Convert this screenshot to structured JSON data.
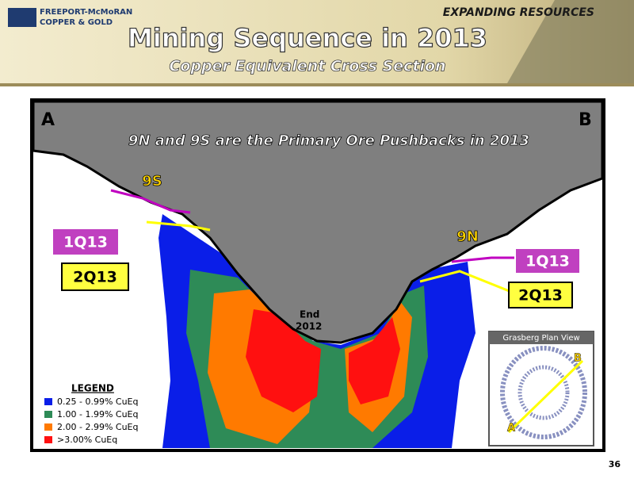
{
  "header": {
    "company": [
      "FREEPORT-McMoRAN",
      "COPPER & GOLD"
    ],
    "tagline": "EXPANDING RESOURCES",
    "title": "Mining Sequence in 2013",
    "subtitle": "Copper Equivalent Cross Section"
  },
  "section": {
    "left_end": "A",
    "right_end": "B",
    "headline": "9N and 9S are the Primary Ore Pushbacks in 2013",
    "pushbacks": [
      "9S",
      "9N"
    ],
    "callouts": [
      "1Q13",
      "2Q13",
      "1Q13",
      "2Q13"
    ],
    "end_label": [
      "End",
      "2012"
    ]
  },
  "legend": {
    "title": "LEGEND",
    "items": [
      "0.25 - 0.99% CuEq",
      "1.00 - 1.99% CuEq",
      "2.00 - 2.99% CuEq",
      ">3.00% CuEq"
    ]
  },
  "inset": {
    "title": "Grasberg Plan View",
    "start": "A",
    "end": "B"
  },
  "page_number": "36"
}
